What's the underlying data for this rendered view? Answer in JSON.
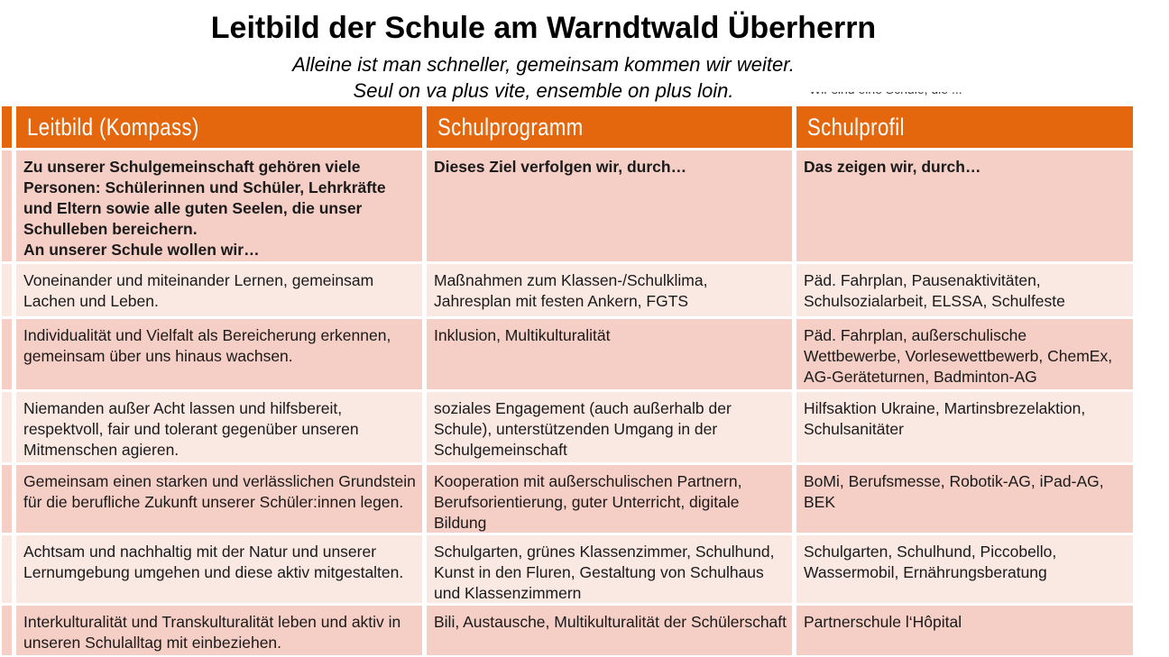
{
  "page": {
    "title": "Leitbild der Schule am Warndtwald Überherrn",
    "subtitle_de": "Alleine ist man schneller, gemeinsam kommen wir weiter.",
    "subtitle_fr": "Seul on va plus vite, ensemble on plus loin.",
    "clipped_fragment": "Wir sind eine Schule, die ..."
  },
  "colors": {
    "header_orange": "#E4670E",
    "row_dark": "#F5CEC5",
    "row_light": "#FAE8E2",
    "header_text": "#FFFFFF",
    "body_text": "#1A1A1A"
  },
  "table": {
    "headers": [
      "Leitbild (Kompass)",
      "Schulprogramm",
      "Schulprofil"
    ],
    "rows": [
      {
        "shade": "dark",
        "bold": true,
        "cells": [
          "Zu unserer Schulgemeinschaft gehören viele Personen: Schülerinnen und Schüler, Lehrkräfte und Eltern sowie alle guten Seelen, die unser Schulleben bereichern.\nAn unserer Schule wollen wir…",
          "Dieses Ziel verfolgen wir, durch…",
          "Das zeigen wir, durch…"
        ]
      },
      {
        "shade": "light",
        "bold": false,
        "cells": [
          "Voneinander und miteinander Lernen, gemeinsam Lachen und Leben.",
          "Maßnahmen zum Klassen-/Schulklima, Jahresplan mit festen Ankern, FGTS",
          "Päd. Fahrplan, Pausenaktivitäten, Schulsozialarbeit, ELSSA, Schulfeste"
        ]
      },
      {
        "shade": "dark",
        "bold": false,
        "cells": [
          "Individualität und Vielfalt als Bereicherung erkennen, gemeinsam über uns hinaus wachsen.",
          "Inklusion, Multikulturalität",
          "Päd. Fahrplan, außerschulische Wettbewerbe, Vorlesewettbewerb, ChemEx, AG-Geräteturnen, Badminton-AG"
        ]
      },
      {
        "shade": "light",
        "bold": false,
        "cells": [
          "Niemanden außer Acht lassen und hilfsbereit, respektvoll, fair und tolerant gegenüber unseren Mitmenschen agieren.",
          "soziales Engagement (auch außerhalb der Schule), unterstützenden Umgang in der Schulgemeinschaft",
          "Hilfsaktion Ukraine, Martinsbrezelaktion, Schulsanitäter"
        ]
      },
      {
        "shade": "dark",
        "bold": false,
        "cells": [
          "Gemeinsam einen starken und verlässlichen Grundstein für die berufliche Zukunft unserer Schüler:innen legen.",
          "Kooperation mit außerschulischen Partnern, Berufsorientierung, guter Unterricht, digitale Bildung",
          "BoMi, Berufsmesse, Robotik-AG, iPad-AG, BEK"
        ]
      },
      {
        "shade": "light",
        "bold": false,
        "cells": [
          "Achtsam und nachhaltig mit der Natur und unserer Lernumgebung umgehen und diese aktiv mitgestalten.",
          "Schulgarten, grünes Klassenzimmer, Schulhund, Kunst in den Fluren, Gestaltung von Schulhaus und Klassenzimmern",
          "Schulgarten, Schulhund, Piccobello, Wassermobil, Ernährungsberatung"
        ]
      },
      {
        "shade": "dark",
        "bold": false,
        "cells": [
          "Interkulturalität und Transkulturalität leben und aktiv in unseren Schulalltag mit einbeziehen.",
          "Bili, Austausche, Multikulturalität der Schülerschaft",
          "Partnerschule l‘Hôpital"
        ]
      }
    ]
  }
}
